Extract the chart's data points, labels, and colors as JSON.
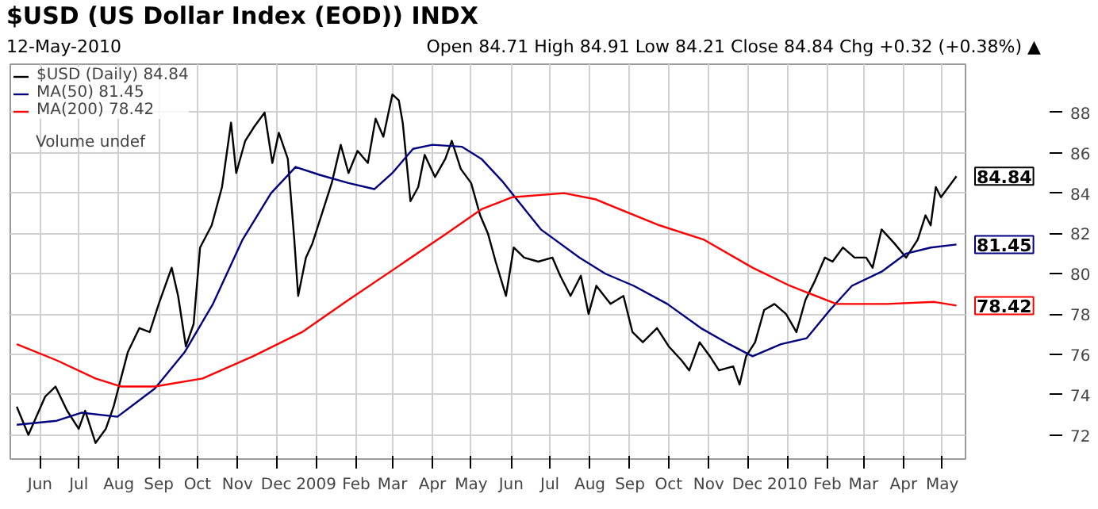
{
  "chart_data": {
    "type": "line",
    "title": "$USD (US Dollar Index (EOD)) INDX",
    "subtitle": "12-May-2010",
    "annotations": [
      "Open 84.71 High 84.91 Low 84.21 Close 84.84 Chg +0.32 (+0.38%) ▲",
      "Volume undef"
    ],
    "xlim": [
      "2008-05-09",
      "2010-05-19"
    ],
    "ylim": [
      70.8,
      90.4
    ],
    "yticks": [
      72,
      74,
      76,
      78,
      80,
      82,
      84,
      86,
      88
    ],
    "xticks": [
      {
        "value": "2008-06-01",
        "label": "Jun"
      },
      {
        "value": "2008-07-01",
        "label": "Jul"
      },
      {
        "value": "2008-08-01",
        "label": "Aug"
      },
      {
        "value": "2008-09-01",
        "label": "Sep"
      },
      {
        "value": "2008-10-01",
        "label": "Oct"
      },
      {
        "value": "2008-11-01",
        "label": "Nov"
      },
      {
        "value": "2008-12-01",
        "label": "Dec"
      },
      {
        "value": "2009-01-01",
        "label": "2009"
      },
      {
        "value": "2009-02-01",
        "label": "Feb"
      },
      {
        "value": "2009-03-01",
        "label": "Mar"
      },
      {
        "value": "2009-04-01",
        "label": "Apr"
      },
      {
        "value": "2009-05-01",
        "label": "May"
      },
      {
        "value": "2009-06-01",
        "label": "Jun"
      },
      {
        "value": "2009-07-01",
        "label": "Jul"
      },
      {
        "value": "2009-08-01",
        "label": "Aug"
      },
      {
        "value": "2009-09-01",
        "label": "Sep"
      },
      {
        "value": "2009-10-01",
        "label": "Oct"
      },
      {
        "value": "2009-11-01",
        "label": "Nov"
      },
      {
        "value": "2009-12-01",
        "label": "Dec"
      },
      {
        "value": "2010-01-01",
        "label": "2010"
      },
      {
        "value": "2010-02-01",
        "label": "Feb"
      },
      {
        "value": "2010-03-01",
        "label": "Mar"
      },
      {
        "value": "2010-04-01",
        "label": "Apr"
      },
      {
        "value": "2010-05-01",
        "label": "May"
      }
    ],
    "grid": true,
    "legend": "top left",
    "series": [
      {
        "name": "$USD (Daily) 84.84",
        "color": "#000000",
        "x": [
          "2008-05-14",
          "2008-05-23",
          "2008-06-05",
          "2008-06-13",
          "2008-06-22",
          "2008-07-01",
          "2008-07-06",
          "2008-07-14",
          "2008-07-22",
          "2008-07-28",
          "2008-08-08",
          "2008-08-17",
          "2008-08-25",
          "2008-09-01",
          "2008-09-11",
          "2008-09-16",
          "2008-09-22",
          "2008-09-28",
          "2008-10-03",
          "2008-10-12",
          "2008-10-20",
          "2008-10-27",
          "2008-10-31",
          "2008-11-07",
          "2008-11-14",
          "2008-11-22",
          "2008-11-28",
          "2008-12-03",
          "2008-12-10",
          "2008-12-15",
          "2008-12-18",
          "2008-12-24",
          "2008-12-29",
          "2009-01-05",
          "2009-01-13",
          "2009-01-20",
          "2009-01-26",
          "2009-02-02",
          "2009-02-10",
          "2009-02-16",
          "2009-02-22",
          "2009-03-01",
          "2009-03-06",
          "2009-03-09",
          "2009-03-15",
          "2009-03-21",
          "2009-03-26",
          "2009-04-03",
          "2009-04-11",
          "2009-04-16",
          "2009-04-23",
          "2009-05-01",
          "2009-05-08",
          "2009-05-14",
          "2009-05-20",
          "2009-05-28",
          "2009-06-03",
          "2009-06-11",
          "2009-06-22",
          "2009-07-03",
          "2009-07-09",
          "2009-07-17",
          "2009-07-25",
          "2009-07-31",
          "2009-08-06",
          "2009-08-17",
          "2009-08-27",
          "2009-09-03",
          "2009-09-11",
          "2009-09-22",
          "2009-10-01",
          "2009-10-11",
          "2009-10-17",
          "2009-10-25",
          "2009-11-02",
          "2009-11-09",
          "2009-11-20",
          "2009-11-25",
          "2009-11-30",
          "2009-12-07",
          "2009-12-14",
          "2009-12-22",
          "2009-12-31",
          "2010-01-08",
          "2010-01-15",
          "2010-01-22",
          "2010-01-30",
          "2010-02-05",
          "2010-02-13",
          "2010-02-22",
          "2010-03-03",
          "2010-03-08",
          "2010-03-15",
          "2010-03-25",
          "2010-04-03",
          "2010-04-12",
          "2010-04-18",
          "2010-04-22",
          "2010-04-26",
          "2010-04-30",
          "2010-05-12"
        ],
        "values": [
          73.4,
          72.0,
          73.9,
          74.4,
          73.2,
          72.3,
          73.2,
          71.6,
          72.3,
          73.4,
          76.1,
          77.3,
          77.1,
          78.5,
          80.3,
          78.9,
          76.4,
          77.5,
          81.3,
          82.4,
          84.3,
          87.5,
          85.0,
          86.6,
          87.3,
          88.0,
          85.5,
          87.0,
          85.7,
          81.7,
          78.9,
          80.8,
          81.5,
          82.9,
          84.5,
          86.4,
          85.0,
          86.1,
          85.5,
          87.7,
          86.8,
          88.9,
          88.6,
          87.5,
          83.6,
          84.3,
          85.9,
          84.8,
          85.7,
          86.6,
          85.2,
          84.5,
          82.9,
          82.0,
          80.6,
          78.9,
          81.3,
          80.8,
          80.6,
          80.8,
          79.9,
          78.9,
          79.9,
          78.0,
          79.4,
          78.5,
          78.9,
          77.1,
          76.6,
          77.3,
          76.4,
          75.7,
          75.2,
          76.6,
          75.9,
          75.2,
          75.4,
          74.5,
          75.9,
          76.6,
          78.2,
          78.5,
          78.0,
          77.1,
          78.7,
          79.6,
          80.8,
          80.6,
          81.3,
          80.8,
          80.8,
          80.3,
          82.2,
          81.5,
          80.8,
          81.7,
          82.9,
          82.4,
          84.3,
          83.8,
          84.84
        ],
        "value_labels": [
          null,
          null,
          null,
          null,
          null,
          null,
          null,
          null,
          null,
          null,
          null,
          null,
          null,
          null,
          null,
          null,
          null,
          null,
          null,
          null,
          null,
          null,
          null,
          null,
          null,
          null,
          null,
          null,
          null,
          null,
          null,
          null,
          null,
          null,
          null,
          null,
          null,
          null,
          null,
          null,
          null,
          null,
          null,
          null,
          null,
          null,
          null,
          null,
          null,
          null,
          null,
          null,
          null,
          null,
          null,
          null,
          null,
          null,
          null,
          null,
          null,
          null,
          null,
          null,
          null,
          null,
          null,
          null,
          null,
          null,
          null,
          null,
          null,
          null,
          null,
          null,
          null,
          null,
          null,
          null,
          null,
          null,
          null,
          null,
          null,
          null,
          null,
          null,
          null,
          null,
          null,
          null,
          null,
          null,
          null,
          null,
          null,
          null,
          null,
          null,
          "84.84"
        ]
      },
      {
        "name": "MA(50) 81.45",
        "color": "#000080",
        "x": [
          "2008-05-14",
          "2008-06-14",
          "2008-07-03",
          "2008-07-31",
          "2008-08-29",
          "2008-09-21",
          "2008-10-13",
          "2008-11-05",
          "2008-11-27",
          "2008-12-16",
          "2009-01-04",
          "2009-01-26",
          "2009-02-15",
          "2009-03-01",
          "2009-03-17",
          "2009-04-01",
          "2009-04-24",
          "2009-05-09",
          "2009-05-25",
          "2009-06-24",
          "2009-07-24",
          "2009-08-13",
          "2009-09-04",
          "2009-09-30",
          "2009-10-26",
          "2009-11-17",
          "2009-12-05",
          "2009-12-27",
          "2010-01-16",
          "2010-02-03",
          "2010-02-20",
          "2010-03-15",
          "2010-04-03",
          "2010-04-22",
          "2010-05-12"
        ],
        "values": [
          72.5,
          72.7,
          73.1,
          72.9,
          74.3,
          76.1,
          78.5,
          81.7,
          84.0,
          85.3,
          84.9,
          84.5,
          84.2,
          85.0,
          86.2,
          86.4,
          86.3,
          85.7,
          84.6,
          82.2,
          80.8,
          80.0,
          79.4,
          78.5,
          77.3,
          76.5,
          75.9,
          76.5,
          76.8,
          78.2,
          79.4,
          80.1,
          81.0,
          81.3,
          81.45
        ],
        "value_labels": [
          null,
          null,
          null,
          null,
          null,
          null,
          null,
          null,
          null,
          null,
          null,
          null,
          null,
          null,
          null,
          null,
          null,
          null,
          null,
          null,
          null,
          null,
          null,
          null,
          null,
          null,
          null,
          null,
          null,
          null,
          null,
          null,
          null,
          null,
          "81.45"
        ]
      },
      {
        "name": "MA(200) 78.42",
        "color": "#ff0000",
        "x": [
          "2008-05-14",
          "2008-06-14",
          "2008-07-14",
          "2008-08-03",
          "2008-08-29",
          "2008-10-05",
          "2008-11-13",
          "2008-12-21",
          "2009-01-26",
          "2009-03-04",
          "2009-04-12",
          "2009-05-09",
          "2009-06-02",
          "2009-07-12",
          "2009-08-05",
          "2009-09-24",
          "2009-10-28",
          "2009-12-05",
          "2010-01-03",
          "2010-02-08",
          "2010-03-19",
          "2010-04-25",
          "2010-05-12"
        ],
        "values": [
          76.5,
          75.7,
          74.8,
          74.4,
          74.4,
          74.8,
          75.9,
          77.1,
          78.7,
          80.3,
          82.0,
          83.2,
          83.8,
          84.0,
          83.7,
          82.4,
          81.7,
          80.3,
          79.4,
          78.5,
          78.5,
          78.6,
          78.42
        ],
        "value_labels": [
          null,
          null,
          null,
          null,
          null,
          null,
          null,
          null,
          null,
          null,
          null,
          null,
          null,
          null,
          null,
          null,
          null,
          null,
          null,
          null,
          null,
          null,
          "78.42"
        ]
      }
    ]
  }
}
